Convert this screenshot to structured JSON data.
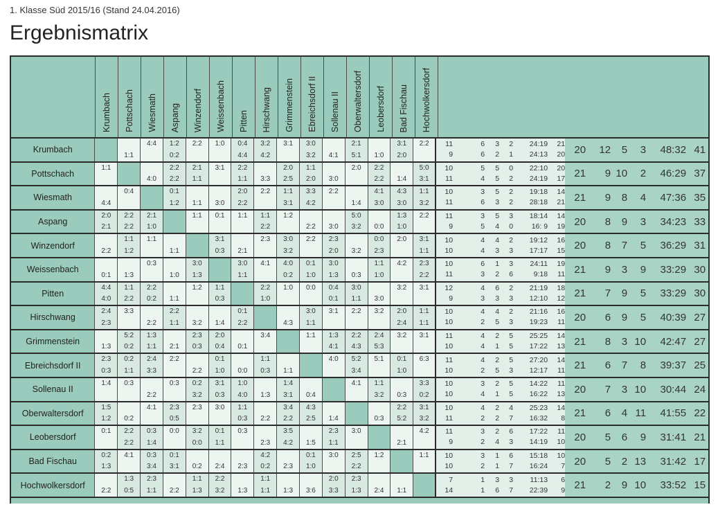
{
  "page": {
    "subtitle": "1. Klasse Süd 2015/16 (Stand 24.04.2016)",
    "title": "Ergebnismatrix"
  },
  "colors": {
    "teal_header": "#9bcbbc",
    "totals_background": "#a9d3c5",
    "cell_light": "#ecf5f0",
    "cell_dark": "#d7e9e0",
    "stats_background": "#e3f0e9",
    "border_dark": "#2b2b2b",
    "border_thin": "#4a4a4a",
    "text": "#333333"
  },
  "columns": [
    "Krumbach",
    "Pottschach",
    "Wiesmath",
    "Aspang",
    "Winzendorf",
    "Weissenbach",
    "Pitten",
    "Hirschwang",
    "Grimmenstein",
    "Ebreichsdorf II",
    "Sollenau II",
    "Oberwaltersdorf",
    "Leobersdorf",
    "Bad Fischau",
    "Hochwolkersdorf"
  ],
  "rows": [
    {
      "team": "Krumbach",
      "cells": [
        null,
        [
          "",
          "1:1"
        ],
        [
          "4:4",
          ""
        ],
        [
          "1:2",
          "0:2"
        ],
        [
          "2:2",
          ""
        ],
        [
          "1:0",
          ""
        ],
        [
          "0:4",
          "4:4"
        ],
        [
          "3:2",
          "4:2"
        ],
        [
          "3:1",
          ""
        ],
        [
          "3:0",
          "3:2"
        ],
        [
          "",
          "4:1"
        ],
        [
          "2:1",
          "5:1"
        ],
        [
          "",
          "1:0"
        ],
        [
          "3:1",
          "2:0"
        ],
        [
          "2:2",
          ""
        ]
      ],
      "half1": [
        "11",
        "6",
        "3",
        "2",
        "24:19",
        "21"
      ],
      "half2": [
        "9",
        "6",
        "2",
        "1",
        "24:13",
        "20"
      ],
      "total": [
        "20",
        "12",
        "5",
        "3",
        "48:32",
        "41"
      ]
    },
    {
      "team": "Pottschach",
      "cells": [
        [
          "1:1",
          ""
        ],
        null,
        [
          "",
          "4:0"
        ],
        [
          "2:2",
          "2:2"
        ],
        [
          "2:1",
          "1:1"
        ],
        [
          "3:1",
          ""
        ],
        [
          "2:2",
          "1:1"
        ],
        [
          "",
          "3:3"
        ],
        [
          "2:0",
          "2:5"
        ],
        [
          "1:1",
          "2:0"
        ],
        [
          "",
          "3:0"
        ],
        [
          "2:0",
          ""
        ],
        [
          "2:2",
          "2:2"
        ],
        [
          "",
          "1:4"
        ],
        [
          "5:0",
          "3:1"
        ]
      ],
      "half1": [
        "10",
        "5",
        "5",
        "0",
        "22:10",
        "20"
      ],
      "half2": [
        "11",
        "4",
        "5",
        "2",
        "24:19",
        "17"
      ],
      "total": [
        "21",
        "9",
        "10",
        "2",
        "46:29",
        "37"
      ]
    },
    {
      "team": "Wiesmath",
      "cells": [
        [
          "",
          "4:4"
        ],
        [
          "0:4",
          ""
        ],
        null,
        [
          "0:1",
          "1:2"
        ],
        [
          "",
          "1:1"
        ],
        [
          "",
          "3:0"
        ],
        [
          "2:0",
          "2:2"
        ],
        [
          "2:2",
          ""
        ],
        [
          "1:1",
          "3:1"
        ],
        [
          "3:3",
          "4:2"
        ],
        [
          "2:2",
          ""
        ],
        [
          "",
          "1:4"
        ],
        [
          "4:1",
          "3:0"
        ],
        [
          "4:3",
          "3:0"
        ],
        [
          "1:1",
          "3:2"
        ]
      ],
      "half1": [
        "10",
        "3",
        "5",
        "2",
        "19:18",
        "14"
      ],
      "half2": [
        "11",
        "6",
        "3",
        "2",
        "28:18",
        "21"
      ],
      "total": [
        "21",
        "9",
        "8",
        "4",
        "47:36",
        "35"
      ]
    },
    {
      "team": "Aspang",
      "cells": [
        [
          "2:0",
          "2:1"
        ],
        [
          "2:2",
          "2:2"
        ],
        [
          "2:1",
          "1:0"
        ],
        null,
        [
          "1:1",
          ""
        ],
        [
          "0:1",
          ""
        ],
        [
          "1:1",
          ""
        ],
        [
          "1:1",
          "2:2"
        ],
        [
          "1:2",
          ""
        ],
        [
          "",
          "2:2"
        ],
        [
          "",
          "3:0"
        ],
        [
          "5:0",
          "3:2"
        ],
        [
          "",
          "0:0"
        ],
        [
          "1:3",
          "1:0"
        ],
        [
          "2:2",
          ""
        ]
      ],
      "half1": [
        "11",
        "3",
        "5",
        "3",
        "18:14",
        "14"
      ],
      "half2": [
        "9",
        "5",
        "4",
        "0",
        "16: 9",
        "19"
      ],
      "total": [
        "20",
        "8",
        "9",
        "3",
        "34:23",
        "33"
      ]
    },
    {
      "team": "Winzendorf",
      "cells": [
        [
          "",
          "2:2"
        ],
        [
          "1:1",
          "1:2"
        ],
        [
          "1:1",
          ""
        ],
        [
          "",
          "1:1"
        ],
        null,
        [
          "3:1",
          "0:3"
        ],
        [
          "",
          "2:1"
        ],
        [
          "2:3",
          ""
        ],
        [
          "3:0",
          "3:2"
        ],
        [
          "2:2",
          ""
        ],
        [
          "2:3",
          "2:0"
        ],
        [
          "",
          "3:2"
        ],
        [
          "0:0",
          "2:3"
        ],
        [
          "2:0",
          ""
        ],
        [
          "3:1",
          "1:1"
        ]
      ],
      "half1": [
        "10",
        "4",
        "4",
        "2",
        "19:12",
        "16"
      ],
      "half2": [
        "10",
        "4",
        "3",
        "3",
        "17:17",
        "15"
      ],
      "total": [
        "20",
        "8",
        "7",
        "5",
        "36:29",
        "31"
      ]
    },
    {
      "team": "Weissenbach",
      "cells": [
        [
          "",
          "0:1"
        ],
        [
          "",
          "1:3"
        ],
        [
          "0:3",
          ""
        ],
        [
          "",
          "1:0"
        ],
        [
          "3:0",
          "1:3"
        ],
        null,
        [
          "3:0",
          "1:1"
        ],
        [
          "4:1",
          ""
        ],
        [
          "4:0",
          "0:2"
        ],
        [
          "0:1",
          "1:0"
        ],
        [
          "3:0",
          "1:3"
        ],
        [
          "",
          "0:3"
        ],
        [
          "1:1",
          "1:0"
        ],
        [
          "4:2",
          ""
        ],
        [
          "2:3",
          "2:2"
        ]
      ],
      "half1": [
        "10",
        "6",
        "1",
        "3",
        "24:11",
        "19"
      ],
      "half2": [
        "11",
        "3",
        "2",
        "6",
        "9:18",
        "11"
      ],
      "total": [
        "21",
        "9",
        "3",
        "9",
        "33:29",
        "30"
      ]
    },
    {
      "team": "Pitten",
      "cells": [
        [
          "4:4",
          "4:0"
        ],
        [
          "1:1",
          "2:2"
        ],
        [
          "2:2",
          "0:2"
        ],
        [
          "",
          "1:1"
        ],
        [
          "1:2",
          ""
        ],
        [
          "1:1",
          "0:3"
        ],
        null,
        [
          "2:2",
          "1:0"
        ],
        [
          "1:0",
          ""
        ],
        [
          "0:0",
          ""
        ],
        [
          "0:4",
          "0:1"
        ],
        [
          "3:0",
          "1:1"
        ],
        [
          "",
          "3:0"
        ],
        [
          "3:2",
          ""
        ],
        [
          "3:1",
          ""
        ]
      ],
      "half1": [
        "12",
        "4",
        "6",
        "2",
        "21:19",
        "18"
      ],
      "half2": [
        "9",
        "3",
        "3",
        "3",
        "12:10",
        "12"
      ],
      "total": [
        "21",
        "7",
        "9",
        "5",
        "33:29",
        "30"
      ]
    },
    {
      "team": "Hirschwang",
      "cells": [
        [
          "2:4",
          "2:3"
        ],
        [
          "3:3",
          ""
        ],
        [
          "",
          "2:2"
        ],
        [
          "2:2",
          "1:1"
        ],
        [
          "",
          "3:2"
        ],
        [
          "",
          "1:4"
        ],
        [
          "0:1",
          "2:2"
        ],
        null,
        [
          "",
          "4:3"
        ],
        [
          "3:0",
          "1:1"
        ],
        [
          "3:1",
          ""
        ],
        [
          "2:2",
          ""
        ],
        [
          "3:2",
          ""
        ],
        [
          "2:0",
          "2:4"
        ],
        [
          "1:1",
          "1:1"
        ]
      ],
      "half1": [
        "10",
        "4",
        "4",
        "2",
        "21:16",
        "16"
      ],
      "half2": [
        "10",
        "2",
        "5",
        "3",
        "19:23",
        "11"
      ],
      "total": [
        "20",
        "6",
        "9",
        "5",
        "40:39",
        "27"
      ]
    },
    {
      "team": "Grimmenstein",
      "cells": [
        [
          "",
          "1:3"
        ],
        [
          "5:2",
          "0:2"
        ],
        [
          "1:3",
          "1:1"
        ],
        [
          "",
          "2:1"
        ],
        [
          "2:3",
          "0:3"
        ],
        [
          "2:0",
          "0:4"
        ],
        [
          "",
          "0:1"
        ],
        [
          "3:4",
          ""
        ],
        null,
        [
          "1:1",
          ""
        ],
        [
          "1:3",
          "4:1"
        ],
        [
          "2:2",
          "4:3"
        ],
        [
          "2:4",
          "5:3"
        ],
        [
          "3:2",
          ""
        ],
        [
          "3:1",
          ""
        ]
      ],
      "half1": [
        "11",
        "4",
        "2",
        "5",
        "25:25",
        "14"
      ],
      "half2": [
        "10",
        "4",
        "1",
        "5",
        "17:22",
        "13"
      ],
      "total": [
        "21",
        "8",
        "3",
        "10",
        "42:47",
        "27"
      ]
    },
    {
      "team": "Ebreichsdorf II",
      "cells": [
        [
          "2:3",
          "0:3"
        ],
        [
          "0:2",
          "1:1"
        ],
        [
          "2:4",
          "3:3"
        ],
        [
          "2:2",
          ""
        ],
        [
          "",
          "2:2"
        ],
        [
          "0:1",
          "1:0"
        ],
        [
          "",
          "0:0"
        ],
        [
          "1:1",
          "0:3"
        ],
        [
          "",
          "1:1"
        ],
        null,
        [
          "4:0",
          ""
        ],
        [
          "5:2",
          "3:4"
        ],
        [
          "5:1",
          ""
        ],
        [
          "0:1",
          "1:0"
        ],
        [
          "6:3",
          ""
        ]
      ],
      "half1": [
        "11",
        "4",
        "2",
        "5",
        "27:20",
        "14"
      ],
      "half2": [
        "10",
        "2",
        "5",
        "3",
        "12:17",
        "11"
      ],
      "total": [
        "21",
        "6",
        "7",
        "8",
        "39:37",
        "25"
      ]
    },
    {
      "team": "Sollenau II",
      "cells": [
        [
          "1:4",
          ""
        ],
        [
          "0:3",
          ""
        ],
        [
          "",
          "2:2"
        ],
        [
          "0:3",
          ""
        ],
        [
          "0:2",
          "3:2"
        ],
        [
          "3:1",
          "0:3"
        ],
        [
          "1:0",
          "4:0"
        ],
        [
          "",
          "1:3"
        ],
        [
          "1:4",
          "3:1"
        ],
        [
          "",
          "0:4"
        ],
        null,
        [
          "4:1",
          ""
        ],
        [
          "1:1",
          "3:2"
        ],
        [
          "",
          "0:3"
        ],
        [
          "3:3",
          "0:2"
        ]
      ],
      "half1": [
        "10",
        "3",
        "2",
        "5",
        "14:22",
        "11"
      ],
      "half2": [
        "10",
        "4",
        "1",
        "5",
        "16:22",
        "13"
      ],
      "total": [
        "20",
        "7",
        "3",
        "10",
        "30:44",
        "24"
      ]
    },
    {
      "team": "Oberwaltersdorf",
      "cells": [
        [
          "1:5",
          "1:2"
        ],
        [
          "",
          "0:2"
        ],
        [
          "4:1",
          ""
        ],
        [
          "2:3",
          "0:5"
        ],
        [
          "2:3",
          ""
        ],
        [
          "3:0",
          ""
        ],
        [
          "1:1",
          "0:3"
        ],
        [
          "",
          "2:2"
        ],
        [
          "3:4",
          "2:2"
        ],
        [
          "4:3",
          "2:5"
        ],
        [
          "",
          "1:4"
        ],
        null,
        [
          "",
          "0:3"
        ],
        [
          "2:2",
          "5:2"
        ],
        [
          "3:1",
          "3:2"
        ]
      ],
      "half1": [
        "10",
        "4",
        "2",
        "4",
        "25:23",
        "14"
      ],
      "half2": [
        "11",
        "2",
        "2",
        "7",
        "16:32",
        "8"
      ],
      "total": [
        "21",
        "6",
        "4",
        "11",
        "41:55",
        "22"
      ]
    },
    {
      "team": "Leobersdorf",
      "cells": [
        [
          "0:1",
          ""
        ],
        [
          "2:2",
          "2:2"
        ],
        [
          "0:3",
          "1:4"
        ],
        [
          "0:0",
          ""
        ],
        [
          "3:2",
          "0:0"
        ],
        [
          "0:1",
          "1:1"
        ],
        [
          "0:3",
          ""
        ],
        [
          "",
          "2:3"
        ],
        [
          "3:5",
          "4:2"
        ],
        [
          "",
          "1:5"
        ],
        [
          "2:3",
          "1:1"
        ],
        [
          "3:0",
          ""
        ],
        null,
        [
          "",
          "2:1"
        ],
        [
          "4:2",
          ""
        ]
      ],
      "half1": [
        "11",
        "3",
        "2",
        "6",
        "17:22",
        "11"
      ],
      "half2": [
        "9",
        "2",
        "4",
        "3",
        "14:19",
        "10"
      ],
      "total": [
        "20",
        "5",
        "6",
        "9",
        "31:41",
        "21"
      ]
    },
    {
      "team": "Bad Fischau",
      "cells": [
        [
          "0:2",
          "1:3"
        ],
        [
          "4:1",
          ""
        ],
        [
          "0:3",
          "3:4"
        ],
        [
          "0:1",
          "3:1"
        ],
        [
          "",
          "0:2"
        ],
        [
          "",
          "2:4"
        ],
        [
          "",
          "2:3"
        ],
        [
          "4:2",
          "0:2"
        ],
        [
          "",
          "2:3"
        ],
        [
          "0:1",
          "1:0"
        ],
        [
          "3:0",
          ""
        ],
        [
          "2:5",
          "2:2"
        ],
        [
          "1:2",
          ""
        ],
        null,
        [
          "1:1",
          ""
        ]
      ],
      "half1": [
        "10",
        "3",
        "1",
        "6",
        "15:18",
        "10"
      ],
      "half2": [
        "10",
        "2",
        "1",
        "7",
        "16:24",
        "7"
      ],
      "total": [
        "20",
        "5",
        "2",
        "13",
        "31:42",
        "17"
      ]
    },
    {
      "team": "Hochwolkersdorf",
      "cells": [
        [
          "",
          "2:2"
        ],
        [
          "1:3",
          "0:5"
        ],
        [
          "2:3",
          "1:1"
        ],
        [
          "",
          "2:2"
        ],
        [
          "1:1",
          "1:3"
        ],
        [
          "2:2",
          "3:2"
        ],
        [
          "",
          "1:3"
        ],
        [
          "1:1",
          "1:1"
        ],
        [
          "",
          "1:3"
        ],
        [
          "",
          "3:6"
        ],
        [
          "2:0",
          "3:3"
        ],
        [
          "2:3",
          "1:3"
        ],
        [
          "",
          "2:4"
        ],
        [
          "",
          "1:1"
        ],
        null
      ],
      "half1": [
        "7",
        "1",
        "3",
        "3",
        "11:13",
        "6"
      ],
      "half2": [
        "14",
        "1",
        "6",
        "7",
        "22:39",
        "9"
      ],
      "total": [
        "21",
        "2",
        "9",
        "10",
        "33:52",
        "15"
      ]
    }
  ],
  "layout_hints": {
    "half_stat_col_widths": [
      24,
      46,
      21,
      20,
      50,
      25
    ],
    "total_stat_col_widths": [
      30,
      36,
      24,
      27,
      58,
      28
    ]
  }
}
